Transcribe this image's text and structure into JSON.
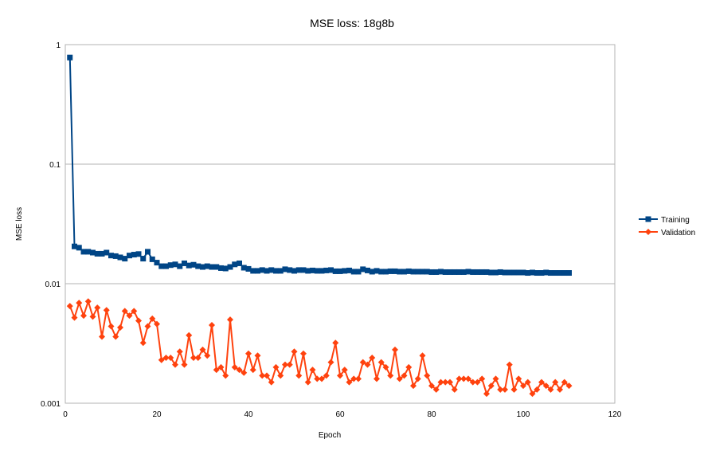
{
  "chart_data": {
    "type": "line",
    "title": "MSE loss: 18g8b",
    "xlabel": "Epoch",
    "ylabel": "MSE loss",
    "y_scale": "log",
    "xlim": [
      0,
      120
    ],
    "ylim": [
      0.001,
      1
    ],
    "x_ticks": [
      0,
      20,
      40,
      60,
      80,
      100,
      120
    ],
    "y_ticks": [
      0.001,
      0.01,
      0.1,
      1
    ],
    "y_tick_labels": [
      "0.001",
      "0.01",
      "0.1",
      "1"
    ],
    "grid": "horizontal major gridlines",
    "legend_position": "right",
    "x": [
      1,
      2,
      3,
      4,
      5,
      6,
      7,
      8,
      9,
      10,
      11,
      12,
      13,
      14,
      15,
      16,
      17,
      18,
      19,
      20,
      21,
      22,
      23,
      24,
      25,
      26,
      27,
      28,
      29,
      30,
      31,
      32,
      33,
      34,
      35,
      36,
      37,
      38,
      39,
      40,
      41,
      42,
      43,
      44,
      45,
      46,
      47,
      48,
      49,
      50,
      51,
      52,
      53,
      54,
      55,
      56,
      57,
      58,
      59,
      60,
      61,
      62,
      63,
      64,
      65,
      66,
      67,
      68,
      69,
      70,
      71,
      72,
      73,
      74,
      75,
      76,
      77,
      78,
      79,
      80,
      81,
      82,
      83,
      84,
      85,
      86,
      87,
      88,
      89,
      90,
      91,
      92,
      93,
      94,
      95,
      96,
      97,
      98,
      99,
      100,
      101,
      102,
      103,
      104,
      105,
      106,
      107,
      108,
      109,
      110
    ],
    "series": [
      {
        "name": "Training",
        "color": "#004586",
        "marker": "square",
        "values": [
          0.78,
          0.0205,
          0.02,
          0.0185,
          0.0185,
          0.0182,
          0.0178,
          0.0178,
          0.0182,
          0.0172,
          0.017,
          0.0166,
          0.0162,
          0.0172,
          0.0175,
          0.0177,
          0.0162,
          0.0185,
          0.016,
          0.015,
          0.014,
          0.014,
          0.0143,
          0.0145,
          0.014,
          0.0148,
          0.0142,
          0.0144,
          0.014,
          0.0138,
          0.014,
          0.0138,
          0.0138,
          0.0135,
          0.0134,
          0.0138,
          0.0145,
          0.0148,
          0.0136,
          0.0133,
          0.0128,
          0.0128,
          0.013,
          0.0128,
          0.013,
          0.0128,
          0.0128,
          0.0132,
          0.013,
          0.0128,
          0.013,
          0.013,
          0.0128,
          0.0129,
          0.0128,
          0.0128,
          0.0129,
          0.013,
          0.0127,
          0.0127,
          0.0128,
          0.0129,
          0.0126,
          0.0126,
          0.0132,
          0.0129,
          0.0126,
          0.0128,
          0.0126,
          0.0126,
          0.0127,
          0.0127,
          0.0126,
          0.0126,
          0.0127,
          0.0126,
          0.0126,
          0.0126,
          0.0126,
          0.0125,
          0.0125,
          0.0126,
          0.0125,
          0.0125,
          0.0125,
          0.0125,
          0.0125,
          0.0126,
          0.0125,
          0.0125,
          0.0125,
          0.0125,
          0.0124,
          0.0124,
          0.0125,
          0.0124,
          0.0124,
          0.0124,
          0.0124,
          0.0124,
          0.0123,
          0.0124,
          0.0123,
          0.0123,
          0.0124,
          0.0123,
          0.0123,
          0.0123,
          0.0123,
          0.0123
        ]
      },
      {
        "name": "Validation",
        "color": "#ff420e",
        "marker": "diamond",
        "values": [
          0.0065,
          0.0052,
          0.0069,
          0.0054,
          0.0071,
          0.0053,
          0.0063,
          0.0036,
          0.006,
          0.0044,
          0.0036,
          0.0043,
          0.0059,
          0.0054,
          0.0059,
          0.0049,
          0.0032,
          0.0044,
          0.0051,
          0.0046,
          0.0023,
          0.0024,
          0.0024,
          0.0021,
          0.0027,
          0.0021,
          0.0037,
          0.0024,
          0.0024,
          0.0028,
          0.0025,
          0.0045,
          0.0019,
          0.002,
          0.0017,
          0.005,
          0.002,
          0.0019,
          0.0018,
          0.0026,
          0.0019,
          0.0025,
          0.0017,
          0.0017,
          0.0015,
          0.002,
          0.0017,
          0.0021,
          0.0021,
          0.0027,
          0.0017,
          0.0026,
          0.0015,
          0.0019,
          0.0016,
          0.0016,
          0.0017,
          0.0022,
          0.0032,
          0.0017,
          0.0019,
          0.0015,
          0.0016,
          0.0016,
          0.0022,
          0.0021,
          0.0024,
          0.0016,
          0.0022,
          0.002,
          0.0017,
          0.0028,
          0.0016,
          0.0017,
          0.002,
          0.0014,
          0.0016,
          0.0025,
          0.0017,
          0.0014,
          0.0013,
          0.0015,
          0.0015,
          0.0015,
          0.0013,
          0.0016,
          0.0016,
          0.0016,
          0.0015,
          0.0015,
          0.0016,
          0.0012,
          0.0014,
          0.0016,
          0.0013,
          0.0013,
          0.0021,
          0.0013,
          0.0016,
          0.0014,
          0.0015,
          0.0012,
          0.0013,
          0.0015,
          0.0014,
          0.0013,
          0.0015,
          0.0013,
          0.0015,
          0.0014
        ]
      }
    ]
  }
}
